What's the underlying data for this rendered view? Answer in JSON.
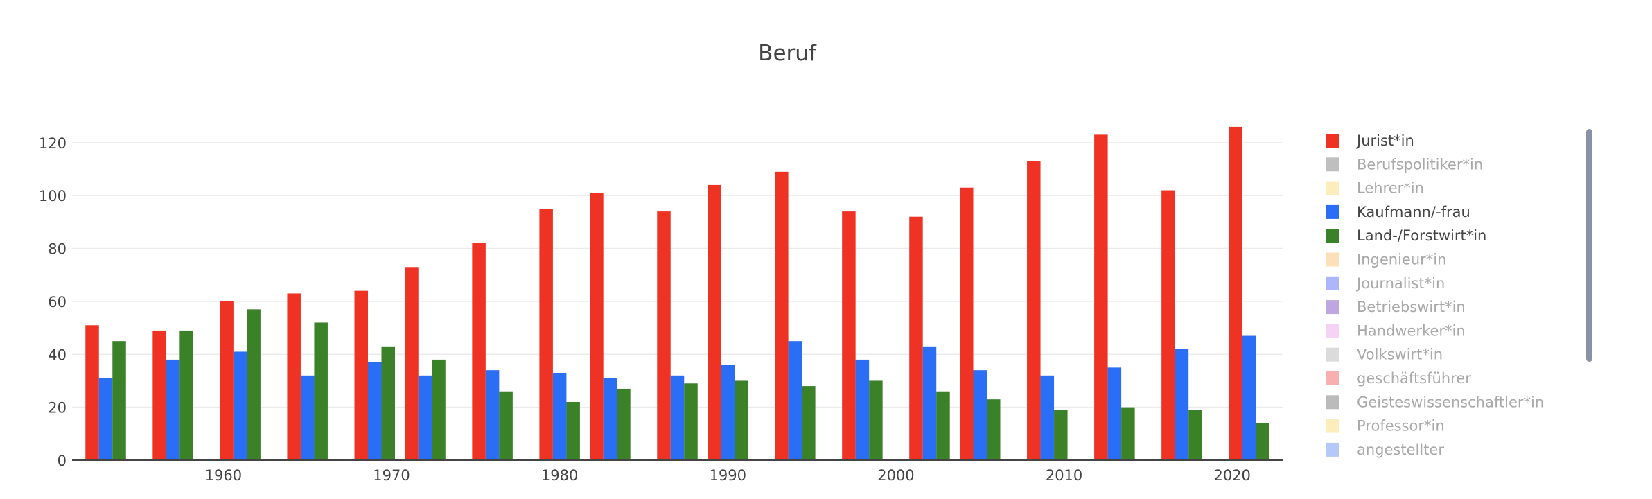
{
  "chart_data": {
    "type": "bar",
    "title": "Beruf",
    "xlabel": "",
    "ylabel": "",
    "x_ticks": [
      1960,
      1970,
      1980,
      1990,
      2000,
      2010,
      2020
    ],
    "y_ticks": [
      0,
      20,
      40,
      60,
      80,
      100,
      120
    ],
    "ylim": [
      0,
      132
    ],
    "grid": true,
    "legend_position": "right",
    "categories": [
      1953,
      1957,
      1961,
      1965,
      1969,
      1972,
      1976,
      1980,
      1983,
      1987,
      1990,
      1994,
      1998,
      2002,
      2005,
      2009,
      2013,
      2017,
      2021
    ],
    "series": [
      {
        "name": "Jurist*in",
        "color": "#ee3224",
        "visible": true,
        "values": [
          51,
          49,
          60,
          63,
          64,
          73,
          82,
          95,
          101,
          94,
          104,
          109,
          94,
          92,
          103,
          113,
          123,
          102,
          126
        ]
      },
      {
        "name": "Kaufmann/-frau",
        "color": "#2a6ef5",
        "visible": true,
        "values": [
          31,
          38,
          41,
          32,
          37,
          32,
          34,
          33,
          31,
          32,
          36,
          45,
          38,
          43,
          34,
          32,
          35,
          42,
          47
        ]
      },
      {
        "name": "Land-/Forstwirt*in",
        "color": "#3a8127",
        "visible": true,
        "values": [
          45,
          49,
          57,
          52,
          43,
          38,
          26,
          22,
          27,
          29,
          30,
          28,
          30,
          26,
          23,
          19,
          20,
          19,
          14
        ]
      }
    ],
    "legend": [
      {
        "name": "Jurist*in",
        "color": "#ee3224",
        "visible": true
      },
      {
        "name": "Berufspolitiker*in",
        "color": "#808080",
        "visible": false
      },
      {
        "name": "Lehrer*in",
        "color": "#f9dc7c",
        "visible": false
      },
      {
        "name": "Kaufmann/-frau",
        "color": "#2a6ef5",
        "visible": true
      },
      {
        "name": "Land-/Forstwirt*in",
        "color": "#3a8127",
        "visible": true
      },
      {
        "name": "Ingenieur*in",
        "color": "#f7c275",
        "visible": false
      },
      {
        "name": "Journalist*in",
        "color": "#5b6cf7",
        "visible": false
      },
      {
        "name": "Betriebswirt*in",
        "color": "#7d4dbf",
        "visible": false
      },
      {
        "name": "Handwerker*in",
        "color": "#eea6f0",
        "visible": false
      },
      {
        "name": "Volkswirt*in",
        "color": "#b8b8b8",
        "visible": false
      },
      {
        "name": "geschäftsführer",
        "color": "#ef5f5f",
        "visible": false
      },
      {
        "name": "Geisteswissenschaftler*in",
        "color": "#777777",
        "visible": false
      },
      {
        "name": "Professor*in",
        "color": "#f9dc7c",
        "visible": false
      },
      {
        "name": "angestellter",
        "color": "#6a93f2",
        "visible": false
      }
    ]
  }
}
